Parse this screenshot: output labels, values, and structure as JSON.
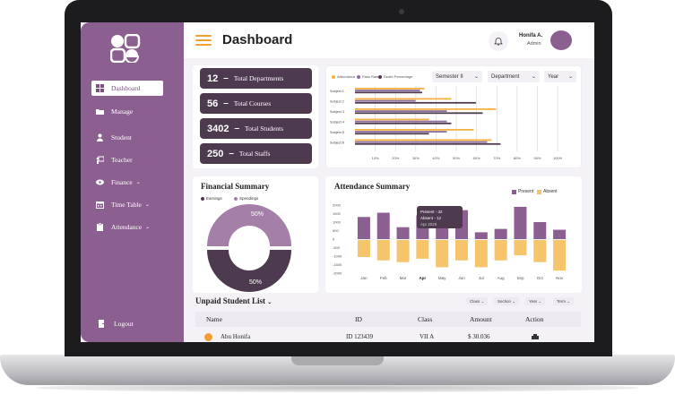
{
  "app": {
    "title": "Dashboard"
  },
  "colors": {
    "sidebar": "#8b5f8f",
    "stat_card": "#4e3a4f",
    "accent": "#f0a030",
    "present": "#8b5f8f",
    "absent": "#f6c46a"
  },
  "sidebar": {
    "items": [
      {
        "label": "Dashboard",
        "icon": "grid-icon",
        "active": true
      },
      {
        "label": "Manage",
        "icon": "folder-icon"
      },
      {
        "label": "Student",
        "icon": "user-icon"
      },
      {
        "label": "Teacher",
        "icon": "teacher-icon"
      },
      {
        "label": "Finance",
        "icon": "coin-icon",
        "chevron": "⌄"
      },
      {
        "label": "Time Table",
        "icon": "calendar-icon",
        "chevron": "⌄"
      },
      {
        "label": "Attendance",
        "icon": "clipboard-icon",
        "chevron": "⌄"
      }
    ],
    "logout": "Logout"
  },
  "header": {
    "user_name": "Honifa A.",
    "user_role": "Admin"
  },
  "stats": [
    {
      "num": "12",
      "label": "Total Departments"
    },
    {
      "num": "56",
      "label": "Total Courses"
    },
    {
      "num": "3402",
      "label": "Total Students"
    },
    {
      "num": "250",
      "label": "Total Staffs"
    }
  ],
  "bar_panel": {
    "legend": [
      "Attendance",
      "Pass Rate",
      "Death Percentage"
    ],
    "dropdowns": [
      "Semester II",
      "Department",
      "Year"
    ]
  },
  "financial": {
    "title": "Financial Summary",
    "legend": [
      "Earnings",
      "Spendings"
    ],
    "top_label": "50%",
    "bottom_label": "50%"
  },
  "attendance": {
    "title": "Attendance Summary",
    "legend": [
      "Present",
      "Absent"
    ],
    "tooltip": {
      "present": "Present - 32",
      "absent": "Absent - 12",
      "date": "Apr 2020"
    }
  },
  "unpaid": {
    "title": "Unpaid Student List",
    "filters": [
      "Class",
      "Section",
      "Year",
      "Term"
    ],
    "columns": [
      "Name",
      "ID",
      "Class",
      "Amount",
      "Action"
    ],
    "rows": [
      {
        "name": "Abu Honifa",
        "id": "ID 123439",
        "class": "VII A",
        "amount": "$ 30.036"
      }
    ]
  },
  "chart_data": [
    {
      "type": "bar",
      "orientation": "horizontal",
      "categories": [
        "Subject 1",
        "Subject 2",
        "Subject 3",
        "Subject 4",
        "Subject 5",
        "Subject 6"
      ],
      "x_ticks": [
        "10%",
        "20%",
        "30%",
        "40%",
        "50%",
        "60%",
        "70%",
        "80%",
        "90%",
        "100%"
      ],
      "xlim": [
        0,
        100
      ],
      "series": [
        {
          "name": "Attendance",
          "color": "#f6b042",
          "values": [
            31,
            43,
            63,
            33,
            53,
            61
          ]
        },
        {
          "name": "Pass Rate",
          "color": "#8a6b9a",
          "values": [
            29,
            27,
            41,
            41,
            41,
            59
          ]
        },
        {
          "name": "Death Percentage",
          "color": "#4e3a4f",
          "values": [
            30,
            54,
            57,
            43,
            33,
            65
          ]
        }
      ]
    },
    {
      "type": "pie",
      "labels": [
        "Earnings",
        "Spendings"
      ],
      "values": [
        50,
        50
      ],
      "colors": [
        "#4e3a4f",
        "#a47fa8"
      ]
    },
    {
      "type": "bar",
      "title": "Attendance Summary",
      "categories": [
        "Jan",
        "Feb",
        "Mar",
        "Apr",
        "May",
        "Jun",
        "Jul",
        "Aug",
        "Sep",
        "Oct",
        "Nov"
      ],
      "y_ticks": [
        "2000",
        "1500",
        "1000",
        "500",
        "0",
        "-500",
        "-1000",
        "-1500",
        "-2000"
      ],
      "ylim": [
        -2000,
        2000
      ],
      "series": [
        {
          "name": "Present",
          "values": [
            1300,
            1550,
            700,
            1400,
            1600,
            1700,
            400,
            600,
            1900,
            1000,
            550
          ]
        },
        {
          "name": "Absent",
          "values": [
            -1000,
            -1200,
            -1300,
            -1100,
            -1600,
            -1200,
            -1600,
            -1200,
            -900,
            -1300,
            -1800
          ]
        }
      ]
    }
  ]
}
